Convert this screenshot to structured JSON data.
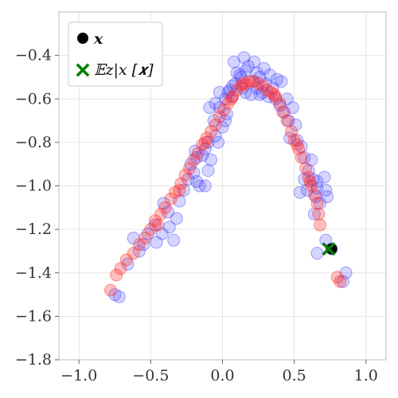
{
  "chart_data": {
    "type": "scatter",
    "title": "",
    "xlabel": "",
    "ylabel": "",
    "xlim": [
      -1.14,
      1.14
    ],
    "ylim": [
      -1.8,
      -0.2
    ],
    "x_ticks": [
      -1.0,
      -0.5,
      0.0,
      0.5,
      1.0
    ],
    "y_ticks": [
      -1.8,
      -1.6,
      -1.4,
      -1.2,
      -1.0,
      -0.8,
      -0.6,
      -0.4
    ],
    "x_tick_labels": [
      "−1.0",
      "−0.5",
      "0.0",
      "0.5",
      "1.0"
    ],
    "y_tick_labels": [
      "−1.8",
      "−1.6",
      "−1.4",
      "−1.2",
      "−1.0",
      "−0.8",
      "−0.6",
      "−0.4"
    ],
    "grid": true,
    "legend_position": "top-left",
    "colors": {
      "series_blue": "#3b3bff",
      "series_red": "#ff2b2b",
      "x_point": "#000000",
      "expectation": "#008000"
    },
    "legend": {
      "x_label": "𝒙",
      "e_label": "𝔼z|x [𝒙]"
    },
    "series": [
      {
        "values": [
          [
            -0.75,
            -1.5
          ],
          [
            -0.72,
            -1.51
          ],
          [
            -0.66,
            -1.36
          ],
          [
            -0.58,
            -1.3
          ],
          [
            -0.62,
            -1.24
          ],
          [
            -0.55,
            -1.27
          ],
          [
            -0.52,
            -1.22
          ],
          [
            -0.46,
            -1.26
          ],
          [
            -0.47,
            -1.18
          ],
          [
            -0.42,
            -1.22
          ],
          [
            -0.38,
            -1.12
          ],
          [
            -0.37,
            -1.19
          ],
          [
            -0.34,
            -1.25
          ],
          [
            -0.3,
            -1.07
          ],
          [
            -0.32,
            -1.15
          ],
          [
            -0.27,
            -1.02
          ],
          [
            -0.24,
            -0.97
          ],
          [
            -0.18,
            -0.98
          ],
          [
            -0.16,
            -1.0
          ],
          [
            -0.12,
            -1.0
          ],
          [
            -0.1,
            -0.93
          ],
          [
            -0.19,
            -0.84
          ],
          [
            -0.18,
            -0.87
          ],
          [
            -0.12,
            -0.83
          ],
          [
            -0.14,
            -0.86
          ],
          [
            -0.05,
            -0.77
          ],
          [
            -0.03,
            -0.8
          ],
          [
            0.0,
            -0.73
          ],
          [
            -0.06,
            -0.7
          ],
          [
            0.03,
            -0.67
          ],
          [
            -0.02,
            -0.64
          ],
          [
            -0.09,
            -0.64
          ],
          [
            -0.05,
            -0.62
          ],
          [
            0.02,
            -0.6
          ],
          [
            0.05,
            -0.56
          ],
          [
            0.07,
            -0.59
          ],
          [
            -0.02,
            -0.57
          ],
          [
            0.07,
            -0.54
          ],
          [
            0.09,
            -0.53
          ],
          [
            0.12,
            -0.49
          ],
          [
            0.13,
            -0.5
          ],
          [
            0.16,
            -0.47
          ],
          [
            0.18,
            -0.45
          ],
          [
            0.24,
            -0.48
          ],
          [
            0.26,
            -0.5
          ],
          [
            0.21,
            -0.52
          ],
          [
            0.14,
            -0.55
          ],
          [
            0.16,
            -0.57
          ],
          [
            0.2,
            -0.58
          ],
          [
            0.24,
            -0.55
          ],
          [
            0.3,
            -0.53
          ],
          [
            0.33,
            -0.49
          ],
          [
            0.38,
            -0.51
          ],
          [
            0.35,
            -0.55
          ],
          [
            0.28,
            -0.57
          ],
          [
            0.22,
            -0.43
          ],
          [
            0.15,
            -0.41
          ],
          [
            0.08,
            -0.43
          ],
          [
            0.26,
            -0.58
          ],
          [
            0.37,
            -0.6
          ],
          [
            0.41,
            -0.52
          ],
          [
            0.4,
            -0.63
          ],
          [
            0.45,
            -0.6
          ],
          [
            0.43,
            -0.66
          ],
          [
            0.46,
            -0.7
          ],
          [
            0.49,
            -0.64
          ],
          [
            0.47,
            -0.78
          ],
          [
            0.51,
            -0.72
          ],
          [
            0.52,
            -0.79
          ],
          [
            0.55,
            -0.82
          ],
          [
            0.57,
            -0.87
          ],
          [
            0.62,
            -0.88
          ],
          [
            0.6,
            -0.93
          ],
          [
            0.57,
            -0.97
          ],
          [
            0.63,
            -0.97
          ],
          [
            0.66,
            -0.98
          ],
          [
            0.66,
            -1.01
          ],
          [
            0.59,
            -1.02
          ],
          [
            0.54,
            -1.03
          ],
          [
            0.72,
            -1.02
          ],
          [
            0.71,
            -0.96
          ],
          [
            0.65,
            -1.05
          ],
          [
            0.68,
            -1.08
          ],
          [
            0.64,
            -1.13
          ],
          [
            0.73,
            -1.05
          ],
          [
            0.76,
            -1.29
          ],
          [
            0.66,
            -1.31
          ],
          [
            0.72,
            -1.25
          ],
          [
            0.84,
            -1.44
          ],
          [
            0.86,
            -1.4
          ],
          [
            -0.2,
            -0.94
          ],
          [
            -0.1,
            -0.8
          ],
          [
            0.02,
            -0.7
          ],
          [
            0.1,
            -0.48
          ],
          [
            0.29,
            -0.46
          ],
          [
            0.04,
            -0.57
          ],
          [
            0.32,
            -0.59
          ],
          [
            -0.08,
            -0.88
          ],
          [
            -0.22,
            -0.9
          ],
          [
            -0.41,
            -1.08
          ]
        ]
      },
      {
        "values": [
          [
            -0.78,
            -1.48
          ],
          [
            -0.74,
            -1.41
          ],
          [
            -0.71,
            -1.38
          ],
          [
            -0.67,
            -1.34
          ],
          [
            -0.62,
            -1.31
          ],
          [
            -0.58,
            -1.27
          ],
          [
            -0.54,
            -1.24
          ],
          [
            -0.5,
            -1.2
          ],
          [
            -0.47,
            -1.16
          ],
          [
            -0.43,
            -1.13
          ],
          [
            -0.4,
            -1.1
          ],
          [
            -0.36,
            -1.06
          ],
          [
            -0.33,
            -1.03
          ],
          [
            -0.29,
            -0.99
          ],
          [
            -0.26,
            -0.95
          ],
          [
            -0.23,
            -0.92
          ],
          [
            -0.2,
            -0.88
          ],
          [
            -0.17,
            -0.85
          ],
          [
            -0.14,
            -0.81
          ],
          [
            -0.11,
            -0.78
          ],
          [
            -0.08,
            -0.75
          ],
          [
            -0.05,
            -0.72
          ],
          [
            -0.02,
            -0.68
          ],
          [
            0.01,
            -0.65
          ],
          [
            0.04,
            -0.62
          ],
          [
            0.07,
            -0.59
          ],
          [
            0.1,
            -0.56
          ],
          [
            0.13,
            -0.54
          ],
          [
            0.16,
            -0.53
          ],
          [
            0.19,
            -0.52
          ],
          [
            0.22,
            -0.52
          ],
          [
            0.25,
            -0.53
          ],
          [
            0.28,
            -0.54
          ],
          [
            0.31,
            -0.56
          ],
          [
            0.34,
            -0.57
          ],
          [
            0.37,
            -0.59
          ],
          [
            0.4,
            -0.62
          ],
          [
            0.42,
            -0.66
          ],
          [
            0.45,
            -0.7
          ],
          [
            0.48,
            -0.75
          ],
          [
            0.5,
            -0.79
          ],
          [
            0.53,
            -0.83
          ],
          [
            0.55,
            -0.87
          ],
          [
            0.58,
            -0.92
          ],
          [
            0.6,
            -0.96
          ],
          [
            0.62,
            -1.0
          ],
          [
            0.64,
            -1.04
          ],
          [
            0.66,
            -1.08
          ],
          [
            0.67,
            -1.13
          ],
          [
            0.68,
            -1.18
          ],
          [
            0.8,
            -1.42
          ],
          [
            0.82,
            -1.44
          ],
          [
            -0.45,
            -1.18
          ],
          [
            -0.3,
            -1.02
          ],
          [
            0.06,
            -0.6
          ],
          [
            0.14,
            -0.53
          ],
          [
            0.36,
            -0.58
          ],
          [
            0.52,
            -0.81
          ],
          [
            -0.12,
            -0.8
          ],
          [
            0.61,
            -0.98
          ]
        ]
      }
    ],
    "highlight": {
      "x_point": [
        0.76,
        -1.29
      ],
      "expectation_point": [
        0.74,
        -1.29
      ]
    }
  }
}
